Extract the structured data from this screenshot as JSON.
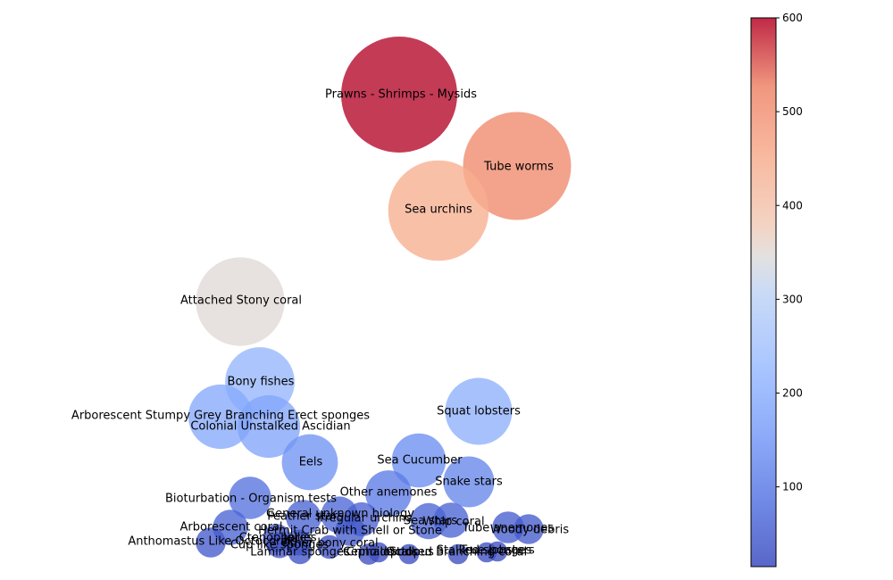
{
  "chart_data": {
    "type": "scatter",
    "encoding": "bubble",
    "title": "",
    "xlabel": "",
    "ylabel": "",
    "axes_visible": false,
    "colormap": "coolwarm",
    "colorbar": {
      "range": [
        15,
        600
      ],
      "ticks": [
        100,
        200,
        300,
        400,
        500,
        600
      ]
    },
    "points": [
      {
        "label": "Prawns - Shrimps - Mysids",
        "value": 600
      },
      {
        "label": "Tube worms",
        "value": 520
      },
      {
        "label": "Sea urchins",
        "value": 450
      },
      {
        "label": "Attached Stony coral",
        "value": 350
      },
      {
        "label": "Bony fishes",
        "value": 215
      },
      {
        "label": "Squat lobsters",
        "value": 200
      },
      {
        "label": "Arborescent Stumpy Grey Branching Erect sponges",
        "value": 185
      },
      {
        "label": "Colonial Unstalked Ascidian",
        "value": 175
      },
      {
        "label": "Eels",
        "value": 140
      },
      {
        "label": "Sea Cucumber",
        "value": 130
      },
      {
        "label": "Snake stars",
        "value": 115
      },
      {
        "label": "Other anemones",
        "value": 95
      },
      {
        "label": "Bioturbation - Organism tests",
        "value": 80
      },
      {
        "label": "General unknown biology",
        "value": 60
      },
      {
        "label": "Feather stars",
        "value": 55
      },
      {
        "label": "Irregular urchins",
        "value": 52
      },
      {
        "label": "Sea stars",
        "value": 58
      },
      {
        "label": "Whip coral",
        "value": 55
      },
      {
        "label": "Tube anemones",
        "value": 45
      },
      {
        "label": "Woody debris",
        "value": 40
      },
      {
        "label": "Hermit Crab with Shell or Stone",
        "value": 40
      },
      {
        "label": "Arborescent coral",
        "value": 55
      },
      {
        "label": "Ctenophores",
        "value": 35
      },
      {
        "label": "Jellies",
        "value": 30
      },
      {
        "label": "Anthomastus Like Octocorals",
        "value": 40
      },
      {
        "label": "Cup like sponges",
        "value": 30
      },
      {
        "label": "Other bony coral",
        "value": 25
      },
      {
        "label": "Laminar sponges",
        "value": 25
      },
      {
        "label": "Crinoids",
        "value": 20
      },
      {
        "label": "Cephalopods",
        "value": 18
      },
      {
        "label": "Octopus",
        "value": 18
      },
      {
        "label": "Stalked Branching coral",
        "value": 18
      },
      {
        "label": "Stalked sponges",
        "value": 18
      },
      {
        "label": "True lobsters",
        "value": 18
      }
    ]
  }
}
